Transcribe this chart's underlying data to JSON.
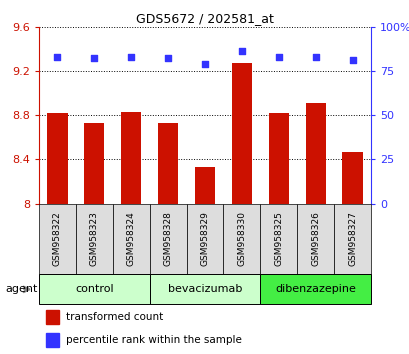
{
  "title": "GDS5672 / 202581_at",
  "samples": [
    "GSM958322",
    "GSM958323",
    "GSM958324",
    "GSM958328",
    "GSM958329",
    "GSM958330",
    "GSM958325",
    "GSM958326",
    "GSM958327"
  ],
  "bar_values": [
    8.82,
    8.73,
    8.83,
    8.73,
    8.33,
    9.27,
    8.82,
    8.91,
    8.47
  ],
  "percentile_values": [
    83,
    82,
    83,
    82,
    79,
    86,
    83,
    83,
    81
  ],
  "ylim_left": [
    8.0,
    9.6
  ],
  "ylim_right": [
    0,
    100
  ],
  "yticks_left": [
    8.0,
    8.4,
    8.8,
    9.2,
    9.6
  ],
  "ytick_labels_left": [
    "8",
    "8.4",
    "8.8",
    "9.2",
    "9.6"
  ],
  "yticks_right": [
    0,
    25,
    50,
    75,
    100
  ],
  "ytick_labels_right": [
    "0",
    "25",
    "50",
    "75",
    "100%"
  ],
  "bar_color": "#cc1100",
  "dot_color": "#3333ff",
  "groups": [
    {
      "label": "control",
      "indices": [
        0,
        1,
        2
      ],
      "color": "#ccffcc"
    },
    {
      "label": "bevacizumab",
      "indices": [
        3,
        4,
        5
      ],
      "color": "#ccffcc"
    },
    {
      "label": "dibenzazepine",
      "indices": [
        6,
        7,
        8
      ],
      "color": "#44ee44"
    }
  ],
  "agent_label": "agent",
  "legend_bar_label": "transformed count",
  "legend_dot_label": "percentile rank within the sample",
  "background_color": "#ffffff",
  "label_area_color": "#dddddd",
  "bar_width": 0.55
}
